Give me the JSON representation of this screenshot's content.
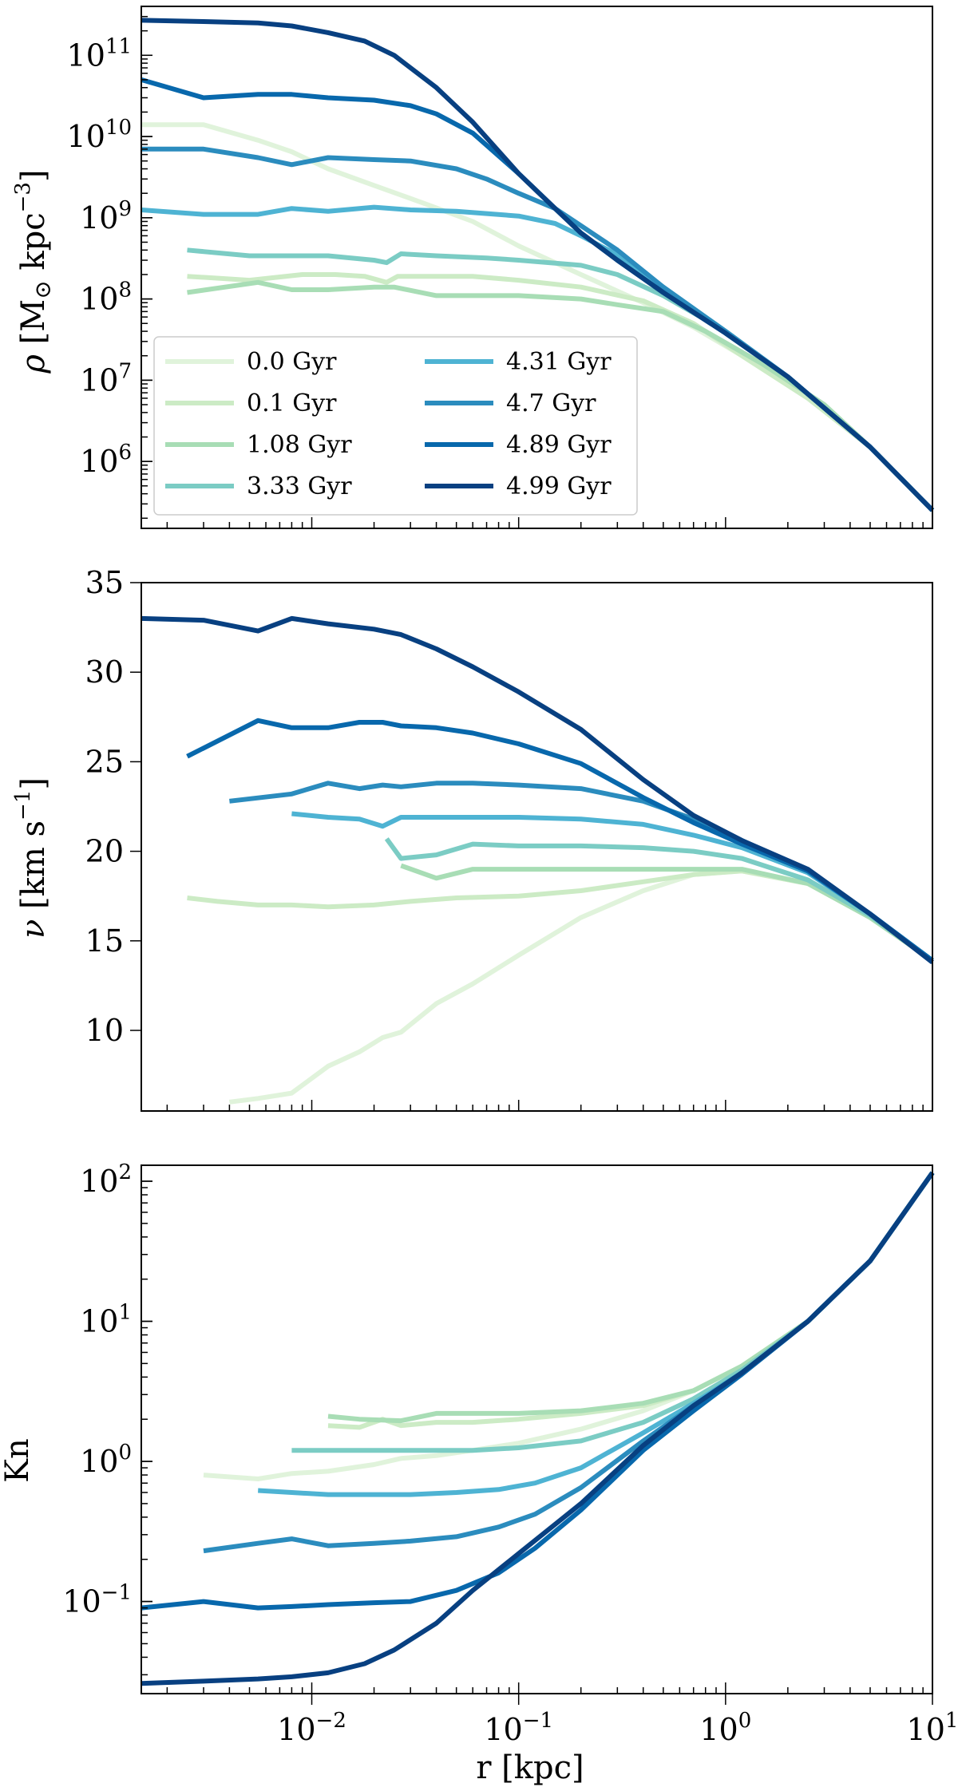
{
  "chart_data": [
    {
      "type": "line",
      "panel": "density",
      "xscale": "log",
      "yscale": "log",
      "xlim": [
        0.0015,
        10
      ],
      "ylim": [
        150000,
        400000000000
      ],
      "ylabel": "ρ [M⊙ kpc⁻³]",
      "yticks": [
        {
          "exp": "11",
          "v": 100000000000.0
        },
        {
          "exp": "10",
          "v": 10000000000.0
        },
        {
          "exp": "9",
          "v": 1000000000.0
        },
        {
          "exp": "8",
          "v": 100000000.0
        },
        {
          "exp": "7",
          "v": 10000000.0
        },
        {
          "exp": "6",
          "v": 1000000.0
        }
      ],
      "legend": {
        "placement": "lower-left",
        "columns": 2
      },
      "series": [
        {
          "name": "0.0 Gyr",
          "color": "#e0f3db",
          "x": [
            0.0015,
            0.003,
            0.0055,
            0.008,
            0.012,
            0.02,
            0.035,
            0.06,
            0.1,
            0.2,
            0.4,
            0.7,
            1.2,
            2.5,
            5,
            10
          ],
          "y": [
            14000000000.0,
            14000000000.0,
            9000000000.0,
            6500000000.0,
            4000000000.0,
            2500000000.0,
            1500000000.0,
            900000000.0,
            450000000.0,
            200000000.0,
            90000000.0,
            45000000.0,
            20000000.0,
            6000000.0,
            1500000.0,
            250000.0
          ]
        },
        {
          "name": "0.1 Gyr",
          "color": "#ccebc5",
          "x": [
            0.0025,
            0.005,
            0.009,
            0.013,
            0.018,
            0.023,
            0.026,
            0.04,
            0.06,
            0.1,
            0.2,
            0.4,
            0.7,
            1.2,
            2.5,
            5,
            10
          ],
          "y": [
            190000000.0,
            170000000.0,
            200000000.0,
            200000000.0,
            190000000.0,
            160000000.0,
            190000000.0,
            190000000.0,
            190000000.0,
            170000000.0,
            140000000.0,
            95000000.0,
            50000000.0,
            20000000.0,
            6000000.0,
            1500000.0,
            250000.0
          ]
        },
        {
          "name": "1.08 Gyr",
          "color": "#a8ddb5",
          "x": [
            0.0025,
            0.0055,
            0.008,
            0.012,
            0.02,
            0.025,
            0.04,
            0.07,
            0.1,
            0.2,
            0.3,
            0.5,
            0.8,
            1.5,
            3,
            5,
            10
          ],
          "y": [
            120000000.0,
            160000000.0,
            130000000.0,
            130000000.0,
            140000000.0,
            140000000.0,
            110000000.0,
            110000000.0,
            110000000.0,
            100000000.0,
            85000000.0,
            70000000.0,
            40000000.0,
            16000000.0,
            5000000.0,
            1500000.0,
            250000.0
          ]
        },
        {
          "name": "3.33 Gyr",
          "color": "#7bccc4",
          "x": [
            0.0025,
            0.005,
            0.008,
            0.012,
            0.02,
            0.023,
            0.027,
            0.04,
            0.07,
            0.1,
            0.2,
            0.3,
            0.5,
            1,
            2,
            5,
            10
          ],
          "y": [
            400000000.0,
            340000000.0,
            340000000.0,
            340000000.0,
            300000000.0,
            280000000.0,
            360000000.0,
            340000000.0,
            320000000.0,
            300000000.0,
            260000000.0,
            200000000.0,
            110000000.0,
            40000000.0,
            11000000.0,
            1500000.0,
            250000.0
          ]
        },
        {
          "name": "4.31 Gyr",
          "color": "#4eb3d3",
          "x": [
            0.0015,
            0.003,
            0.0055,
            0.008,
            0.012,
            0.02,
            0.03,
            0.05,
            0.1,
            0.15,
            0.2,
            0.3,
            0.5,
            1,
            2,
            5,
            10
          ],
          "y": [
            1250000000.0,
            1100000000.0,
            1100000000.0,
            1300000000.0,
            1200000000.0,
            1350000000.0,
            1250000000.0,
            1200000000.0,
            1050000000.0,
            850000000.0,
            600000000.0,
            350000000.0,
            140000000.0,
            40000000.0,
            11000000.0,
            1500000.0,
            250000.0
          ]
        },
        {
          "name": "4.7 Gyr",
          "color": "#2b8cbe",
          "x": [
            0.0015,
            0.003,
            0.0055,
            0.008,
            0.012,
            0.02,
            0.03,
            0.05,
            0.07,
            0.1,
            0.15,
            0.2,
            0.3,
            0.5,
            1,
            2,
            5,
            10
          ],
          "y": [
            7000000000.0,
            7000000000.0,
            5500000000.0,
            4500000000.0,
            5500000000.0,
            5200000000.0,
            5000000000.0,
            4000000000.0,
            3000000000.0,
            2000000000.0,
            1300000000.0,
            800000000.0,
            400000000.0,
            140000000.0,
            40000000.0,
            11000000.0,
            1500000.0,
            250000.0
          ]
        },
        {
          "name": "4.89 Gyr",
          "color": "#0868ac",
          "x": [
            0.0015,
            0.003,
            0.0055,
            0.008,
            0.012,
            0.02,
            0.03,
            0.04,
            0.06,
            0.1,
            0.15,
            0.2,
            0.3,
            0.5,
            1,
            2,
            5,
            10
          ],
          "y": [
            50000000000.0,
            30000000000.0,
            33000000000.0,
            33000000000.0,
            30000000000.0,
            28000000000.0,
            24000000000.0,
            19000000000.0,
            11000000000.0,
            3500000000.0,
            1300000000.0,
            650000000.0,
            300000000.0,
            120000000.0,
            38000000.0,
            11000000.0,
            1500000.0,
            250000.0
          ]
        },
        {
          "name": "4.99 Gyr",
          "color": "#084081",
          "x": [
            0.0015,
            0.003,
            0.0055,
            0.008,
            0.012,
            0.018,
            0.025,
            0.04,
            0.06,
            0.1,
            0.15,
            0.2,
            0.3,
            0.5,
            1,
            2,
            5,
            10
          ],
          "y": [
            270000000000.0,
            260000000000.0,
            250000000000.0,
            230000000000.0,
            190000000000.0,
            150000000000.0,
            100000000000.0,
            40000000000.0,
            15000000000.0,
            3500000000.0,
            1300000000.0,
            650000000.0,
            300000000.0,
            120000000.0,
            38000000.0,
            11000000.0,
            1500000.0,
            250000.0
          ]
        }
      ]
    },
    {
      "type": "line",
      "panel": "velocity-dispersion",
      "xscale": "log",
      "yscale": "linear",
      "xlim": [
        0.0015,
        10
      ],
      "ylim": [
        5.5,
        35
      ],
      "ylabel": "ν [km s⁻¹]",
      "yticks": [
        "10",
        "15",
        "20",
        "25",
        "30",
        "35"
      ],
      "series": [
        {
          "name": "0.0 Gyr",
          "color": "#e0f3db",
          "x": [
            0.004,
            0.0055,
            0.008,
            0.012,
            0.017,
            0.022,
            0.027,
            0.04,
            0.06,
            0.1,
            0.2,
            0.4,
            0.7,
            1.2,
            2.5,
            5,
            10
          ],
          "y": [
            6,
            6.2,
            6.5,
            8,
            8.8,
            9.6,
            9.9,
            11.5,
            12.6,
            14.2,
            16.3,
            17.8,
            18.7,
            18.9,
            18.2,
            16.3,
            13.9
          ]
        },
        {
          "name": "0.1 Gyr",
          "color": "#ccebc5",
          "x": [
            0.0025,
            0.0035,
            0.0055,
            0.008,
            0.012,
            0.02,
            0.03,
            0.05,
            0.1,
            0.2,
            0.4,
            0.7,
            1.2,
            2.5,
            5,
            10
          ],
          "y": [
            17.4,
            17.2,
            17,
            17,
            16.9,
            17,
            17.2,
            17.4,
            17.5,
            17.8,
            18.3,
            18.7,
            18.9,
            18.2,
            16.3,
            13.9
          ]
        },
        {
          "name": "1.08 Gyr",
          "color": "#a8ddb5",
          "x": [
            0.027,
            0.04,
            0.06,
            0.1,
            0.2,
            0.4,
            0.7,
            1.2,
            2.5,
            5,
            10
          ],
          "y": [
            19.2,
            18.5,
            19,
            19,
            19,
            19,
            19,
            19,
            18.2,
            16.3,
            13.9
          ]
        },
        {
          "name": "3.33 Gyr",
          "color": "#7bccc4",
          "x": [
            0.023,
            0.027,
            0.04,
            0.06,
            0.1,
            0.2,
            0.4,
            0.7,
            1.2,
            2.5,
            5,
            10
          ],
          "y": [
            20.7,
            19.6,
            19.8,
            20.4,
            20.3,
            20.3,
            20.2,
            20,
            19.6,
            18.4,
            16.4,
            13.9
          ]
        },
        {
          "name": "4.31 Gyr",
          "color": "#4eb3d3",
          "x": [
            0.008,
            0.012,
            0.017,
            0.022,
            0.027,
            0.04,
            0.06,
            0.1,
            0.2,
            0.4,
            0.7,
            1.2,
            2.5,
            5,
            10
          ],
          "y": [
            22.1,
            21.9,
            21.8,
            21.4,
            21.9,
            21.9,
            21.9,
            21.9,
            21.8,
            21.5,
            20.9,
            20.2,
            18.8,
            16.5,
            13.9
          ]
        },
        {
          "name": "4.7 Gyr",
          "color": "#2b8cbe",
          "x": [
            0.004,
            0.008,
            0.012,
            0.017,
            0.022,
            0.027,
            0.04,
            0.06,
            0.1,
            0.2,
            0.4,
            0.7,
            1.2,
            2.5,
            5,
            10
          ],
          "y": [
            22.8,
            23.2,
            23.8,
            23.5,
            23.7,
            23.6,
            23.8,
            23.8,
            23.7,
            23.5,
            22.8,
            21.8,
            20.6,
            18.9,
            16.5,
            13.9
          ]
        },
        {
          "name": "4.89 Gyr",
          "color": "#0868ac",
          "x": [
            0.0025,
            0.0055,
            0.008,
            0.012,
            0.017,
            0.022,
            0.027,
            0.04,
            0.06,
            0.1,
            0.2,
            0.4,
            0.7,
            1.2,
            2.5,
            5,
            10
          ],
          "y": [
            25.3,
            27.3,
            26.9,
            26.9,
            27.2,
            27.2,
            27,
            26.9,
            26.6,
            26,
            24.9,
            23,
            21.6,
            20.4,
            18.9,
            16.5,
            13.9
          ]
        },
        {
          "name": "4.99 Gyr",
          "color": "#084081",
          "x": [
            0.0015,
            0.003,
            0.0055,
            0.008,
            0.012,
            0.02,
            0.027,
            0.04,
            0.06,
            0.1,
            0.2,
            0.4,
            0.7,
            1.2,
            2.5,
            5,
            10
          ],
          "y": [
            33,
            32.9,
            32.3,
            33,
            32.7,
            32.4,
            32.1,
            31.3,
            30.3,
            28.9,
            26.8,
            24,
            22,
            20.6,
            19,
            16.5,
            13.8
          ]
        }
      ]
    },
    {
      "type": "line",
      "panel": "knudsen-number",
      "xscale": "log",
      "yscale": "log",
      "xlim": [
        0.0015,
        10
      ],
      "ylim": [
        0.022,
        130
      ],
      "xlabel": "r [kpc]",
      "ylabel": "Kn",
      "xticks": [
        {
          "exp": "−2",
          "v": 0.01
        },
        {
          "exp": "−1",
          "v": 0.1
        },
        {
          "exp": "0",
          "v": 1
        },
        {
          "exp": "1",
          "v": 10
        }
      ],
      "yticks": [
        {
          "exp": "2",
          "v": 100
        },
        {
          "exp": "1",
          "v": 10
        },
        {
          "exp": "0",
          "v": 1
        },
        {
          "exp": "−1",
          "v": 0.1
        }
      ],
      "series": [
        {
          "name": "0.0 Gyr",
          "color": "#e0f3db",
          "x": [
            0.003,
            0.0055,
            0.008,
            0.012,
            0.02,
            0.027,
            0.04,
            0.06,
            0.1,
            0.2,
            0.4,
            0.7,
            1.2,
            2.5,
            5,
            10
          ],
          "y": [
            0.8,
            0.75,
            0.82,
            0.85,
            0.95,
            1.05,
            1.1,
            1.2,
            1.35,
            1.7,
            2.3,
            3.2,
            4.8,
            10,
            27,
            115
          ]
        },
        {
          "name": "0.1 Gyr",
          "color": "#ccebc5",
          "x": [
            0.012,
            0.017,
            0.022,
            0.027,
            0.04,
            0.06,
            0.1,
            0.2,
            0.4,
            0.7,
            1.2,
            2.5,
            5,
            10
          ],
          "y": [
            1.8,
            1.75,
            2,
            1.8,
            1.9,
            1.9,
            2,
            2.2,
            2.5,
            3.2,
            4.8,
            10,
            27,
            115
          ]
        },
        {
          "name": "1.08 Gyr",
          "color": "#a8ddb5",
          "x": [
            0.012,
            0.017,
            0.027,
            0.04,
            0.06,
            0.1,
            0.2,
            0.4,
            0.7,
            1.2,
            2.5,
            5,
            10
          ],
          "y": [
            2.1,
            2,
            1.95,
            2.2,
            2.2,
            2.2,
            2.3,
            2.6,
            3.2,
            4.8,
            10,
            27,
            115
          ]
        },
        {
          "name": "3.33 Gyr",
          "color": "#7bccc4",
          "x": [
            0.008,
            0.012,
            0.017,
            0.022,
            0.027,
            0.04,
            0.06,
            0.1,
            0.2,
            0.4,
            0.7,
            1.2,
            2.5,
            5,
            10
          ],
          "y": [
            1.2,
            1.2,
            1.2,
            1.2,
            1.2,
            1.2,
            1.2,
            1.25,
            1.4,
            1.9,
            2.8,
            4.5,
            10,
            27,
            115
          ]
        },
        {
          "name": "4.31 Gyr",
          "color": "#4eb3d3",
          "x": [
            0.0055,
            0.008,
            0.012,
            0.02,
            0.03,
            0.05,
            0.08,
            0.12,
            0.2,
            0.4,
            0.7,
            1.2,
            2.5,
            5,
            10
          ],
          "y": [
            0.62,
            0.6,
            0.58,
            0.58,
            0.58,
            0.6,
            0.63,
            0.7,
            0.9,
            1.6,
            2.6,
            4.3,
            10,
            27,
            115
          ]
        },
        {
          "name": "4.7 Gyr",
          "color": "#2b8cbe",
          "x": [
            0.003,
            0.0055,
            0.008,
            0.012,
            0.02,
            0.03,
            0.05,
            0.08,
            0.12,
            0.2,
            0.4,
            0.7,
            1.2,
            2.5,
            5,
            10
          ],
          "y": [
            0.23,
            0.26,
            0.28,
            0.25,
            0.26,
            0.27,
            0.29,
            0.34,
            0.42,
            0.65,
            1.4,
            2.5,
            4.3,
            10,
            27,
            115
          ]
        },
        {
          "name": "4.89 Gyr",
          "color": "#0868ac",
          "x": [
            0.0015,
            0.003,
            0.0055,
            0.008,
            0.012,
            0.02,
            0.03,
            0.05,
            0.08,
            0.12,
            0.2,
            0.4,
            0.7,
            1.2,
            2.5,
            5,
            10
          ],
          "y": [
            0.09,
            0.1,
            0.09,
            0.092,
            0.095,
            0.098,
            0.1,
            0.12,
            0.16,
            0.24,
            0.45,
            1.2,
            2.3,
            4.2,
            10,
            27,
            115
          ]
        },
        {
          "name": "4.99 Gyr",
          "color": "#084081",
          "x": [
            0.0015,
            0.003,
            0.0055,
            0.008,
            0.012,
            0.018,
            0.025,
            0.04,
            0.06,
            0.1,
            0.2,
            0.4,
            0.7,
            1.2,
            2.5,
            5,
            10
          ],
          "y": [
            0.026,
            0.027,
            0.028,
            0.029,
            0.031,
            0.036,
            0.045,
            0.07,
            0.12,
            0.22,
            0.5,
            1.3,
            2.5,
            4.3,
            10,
            27,
            115
          ]
        }
      ]
    }
  ]
}
